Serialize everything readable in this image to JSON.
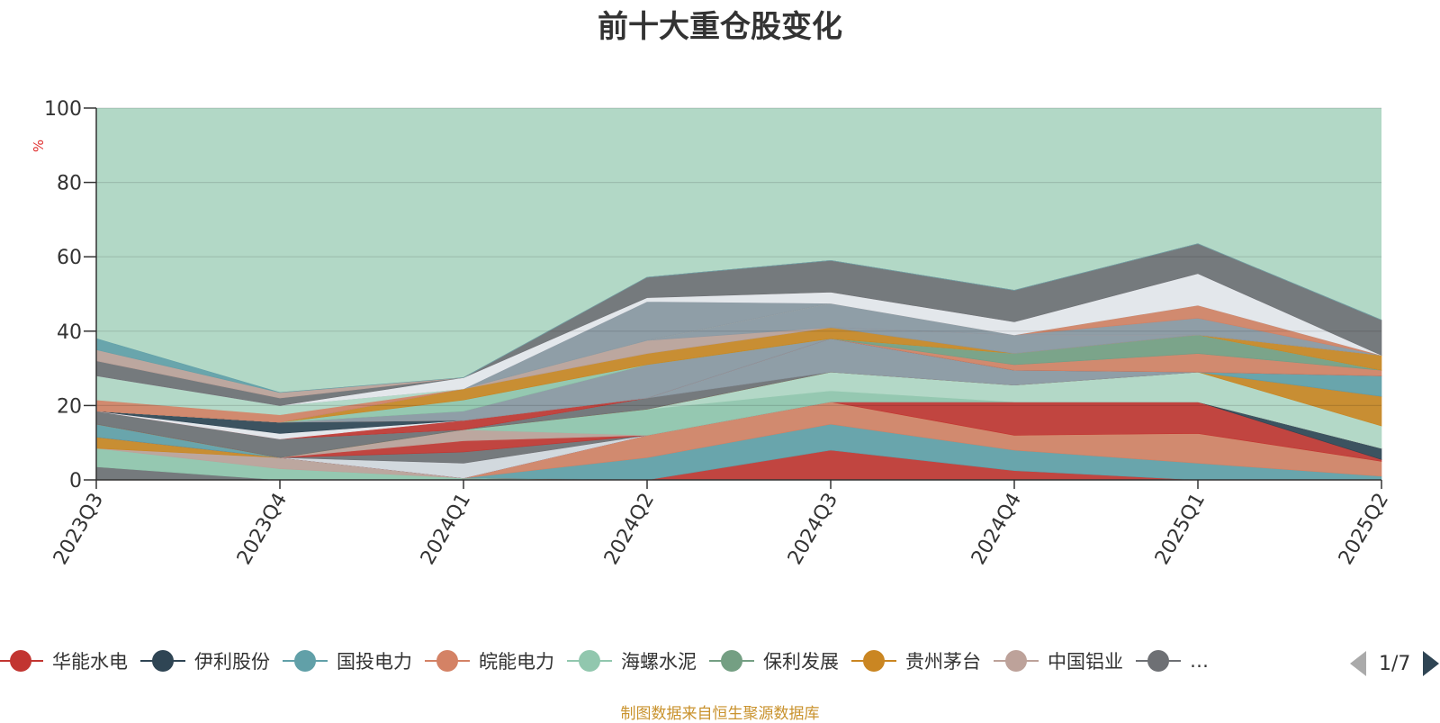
{
  "title": "前十大重仓股变化",
  "source_note": "制图数据来自恒生聚源数据库",
  "pager": {
    "label": "1/7"
  },
  "chart_data": {
    "type": "area",
    "stacked": true,
    "title": "前十大重仓股变化",
    "ylabel": "%",
    "ylim": [
      0,
      100
    ],
    "yticks": [
      "0",
      "20",
      "40",
      "60",
      "80",
      "100"
    ],
    "categories": [
      "2023Q3",
      "2023Q4",
      "2024Q1",
      "2024Q2",
      "2024Q3",
      "2024Q4",
      "2025Q1",
      "2025Q2"
    ],
    "grid": true,
    "legend_position": "bottom",
    "background_total": 100,
    "background_color": "#b2d8c6",
    "legend": [
      {
        "name": "华能水电",
        "color": "#c23531"
      },
      {
        "name": "伊利股份",
        "color": "#2f4554"
      },
      {
        "name": "国投电力",
        "color": "#61a0a8"
      },
      {
        "name": "皖能电力",
        "color": "#d48265"
      },
      {
        "name": "海螺水泥",
        "color": "#91c7ae"
      },
      {
        "name": "保利发展",
        "color": "#749f83"
      },
      {
        "name": "贵州茅台",
        "color": "#ca8622"
      },
      {
        "name": "中国铝业",
        "color": "#bda29a"
      },
      {
        "name": "…",
        "color": "#6e7074"
      }
    ],
    "series": [
      {
        "color": "#6e7074",
        "values": [
          3.5,
          0,
          0,
          0,
          0,
          0,
          0,
          0
        ]
      },
      {
        "color": "#91c7ae",
        "values": [
          5,
          3,
          0.5,
          0,
          0,
          0,
          0,
          0
        ]
      },
      {
        "color": "#bda29a",
        "values": [
          0,
          3,
          0,
          0,
          0,
          0,
          0,
          0
        ]
      },
      {
        "color": "#ca8622",
        "values": [
          3,
          0,
          0,
          0,
          0,
          0,
          0,
          0
        ]
      },
      {
        "color": "#c23531",
        "values": [
          0,
          0,
          0,
          0,
          8,
          2.5,
          0,
          0
        ]
      },
      {
        "color": "#61a0a8",
        "values": [
          3.5,
          0,
          0,
          6,
          7,
          5.5,
          4.5,
          1
        ]
      },
      {
        "color": "#d48265",
        "values": [
          0,
          0,
          0,
          6,
          6,
          4,
          8,
          4
        ]
      },
      {
        "color": "#c23531",
        "values": [
          0,
          0,
          0,
          0,
          0,
          9,
          8.5,
          0.5
        ]
      },
      {
        "color": "#2f4554",
        "values": [
          0,
          0,
          0,
          0,
          0,
          0,
          0,
          3
        ]
      },
      {
        "color": "#d5d9e0",
        "values": [
          0,
          0,
          4,
          0,
          0,
          0,
          0,
          0
        ]
      },
      {
        "color": "#6e7074",
        "values": [
          0,
          0,
          3,
          0,
          0,
          0,
          0,
          0
        ]
      },
      {
        "color": "#c23531",
        "values": [
          0,
          0,
          3,
          0,
          0,
          0,
          0,
          0
        ]
      },
      {
        "color": "#d48265",
        "values": [
          0,
          0,
          0,
          0,
          0,
          0,
          0,
          0
        ]
      },
      {
        "color": "#bda29a",
        "values": [
          0,
          0,
          3,
          0,
          0,
          0,
          0,
          0
        ]
      },
      {
        "color": "#91c7ae",
        "values": [
          0,
          0,
          0,
          7,
          3,
          0,
          0,
          0
        ]
      },
      {
        "color": "#b2d8c6",
        "values": [
          0,
          0,
          0,
          0,
          5,
          4.5,
          8,
          6
        ]
      },
      {
        "color": "#8b98a3",
        "values": [
          0,
          0,
          0,
          0,
          0,
          0,
          0,
          0
        ]
      },
      {
        "color": "#ca8622",
        "values": [
          0,
          0,
          0,
          0,
          0,
          0,
          0,
          8
        ]
      },
      {
        "color": "#2f4554",
        "values": [
          0,
          0,
          0,
          0,
          0,
          0,
          0,
          0
        ]
      },
      {
        "color": "#6e7074",
        "values": [
          3.5,
          5,
          0,
          3,
          0,
          0,
          0,
          0
        ]
      },
      {
        "color": "#8b98a3",
        "values": [
          0,
          0,
          0,
          0,
          9,
          4,
          0,
          0
        ]
      },
      {
        "color": "#61a0a8",
        "values": [
          0,
          0,
          0,
          0,
          0,
          0,
          0,
          5.5
        ]
      },
      {
        "color": "#c23531",
        "values": [
          0,
          0,
          2.5,
          0,
          0,
          0,
          0,
          0
        ]
      },
      {
        "color": "#e8e9ee",
        "values": [
          0,
          1.5,
          0,
          0,
          0,
          0,
          0,
          0
        ]
      },
      {
        "color": "#2f4554",
        "values": [
          0,
          3,
          0,
          0,
          0,
          0,
          0,
          0
        ]
      },
      {
        "color": "#d48265",
        "values": [
          0,
          0,
          0,
          0,
          0,
          1.5,
          5,
          1.5
        ]
      },
      {
        "color": "#8b98a3",
        "values": [
          0,
          0,
          2.5,
          9,
          0,
          0,
          0,
          0
        ]
      },
      {
        "color": "#749f83",
        "values": [
          0,
          0,
          0,
          0,
          0,
          3,
          5,
          0
        ]
      },
      {
        "color": "#91c7ae",
        "values": [
          0,
          0,
          3,
          0,
          0,
          0,
          0,
          0
        ]
      },
      {
        "color": "#ca8622",
        "values": [
          0,
          0,
          3,
          3,
          3,
          0,
          0,
          4
        ]
      },
      {
        "color": "#8b98a3",
        "values": [
          0,
          0,
          0,
          0,
          0,
          5,
          0,
          0
        ]
      },
      {
        "color": "#bda29a",
        "values": [
          0,
          0,
          0,
          3.5,
          0,
          0,
          0,
          0
        ]
      },
      {
        "color": "#8b98a3",
        "values": [
          0,
          0,
          0,
          0,
          6.5,
          0,
          4.5,
          0
        ]
      },
      {
        "color": "#d48265",
        "values": [
          3,
          2,
          0,
          0,
          0,
          0,
          3.5,
          0
        ]
      },
      {
        "color": "#c23531",
        "values": [
          0,
          0,
          0,
          0,
          0,
          0,
          0,
          0
        ]
      },
      {
        "color": "#b2d8c6",
        "values": [
          6.5,
          2.5,
          0,
          0,
          0,
          0,
          0,
          0
        ]
      },
      {
        "color": "#8b98a3",
        "values": [
          0,
          0,
          0,
          10.5,
          0,
          0,
          0,
          0
        ]
      },
      {
        "color": "#e8e9ee",
        "values": [
          0,
          0,
          3,
          1,
          3,
          3.5,
          8.5,
          0
        ]
      },
      {
        "color": "#6e7074",
        "values": [
          4,
          2,
          0,
          5.5,
          8.5,
          8.5,
          8,
          9.5
        ]
      },
      {
        "color": "#bda29a",
        "values": [
          3,
          1.5,
          0,
          0,
          0,
          0,
          0,
          0
        ]
      },
      {
        "color": "#61a0a8",
        "values": [
          3,
          0,
          0,
          0,
          0,
          0,
          0,
          0
        ]
      }
    ]
  }
}
